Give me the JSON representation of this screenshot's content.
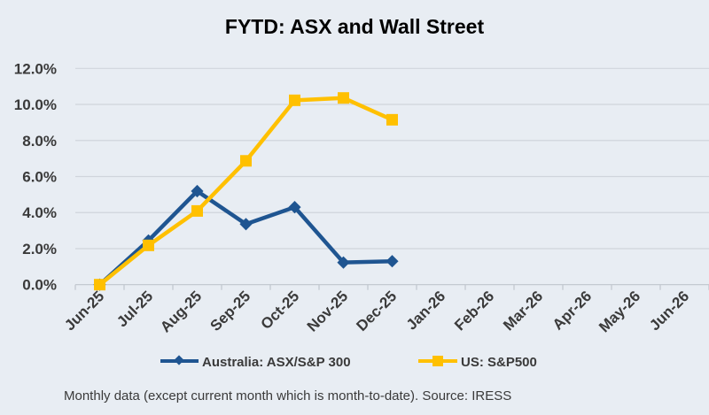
{
  "chart_data": {
    "type": "line",
    "title": "FYTD: ASX and Wall Street",
    "xlabel": "",
    "ylabel": "",
    "categories": [
      "Jun-25",
      "Jul-25",
      "Aug-25",
      "Sep-25",
      "Oct-25",
      "Nov-25",
      "Dec-25",
      "Jan-26",
      "Feb-26",
      "Mar-26",
      "Apr-26",
      "May-26",
      "Jun-26"
    ],
    "ylim": [
      0,
      12
    ],
    "yticks": [
      0,
      2,
      4,
      6,
      8,
      10,
      12
    ],
    "ytick_labels": [
      "0.0%",
      "2.0%",
      "4.0%",
      "6.0%",
      "8.0%",
      "10.0%",
      "12.0%"
    ],
    "grid": true,
    "legend_position": "bottom",
    "series": [
      {
        "name": "Australia: ASX/S&P 300",
        "color": "#1f5591",
        "marker": "diamond",
        "values": [
          0,
          2.45,
          5.19,
          3.36,
          4.3,
          1.23,
          1.3,
          null,
          null,
          null,
          null,
          null,
          null
        ]
      },
      {
        "name": "US: S&P500",
        "color": "#ffc000",
        "marker": "square",
        "values": [
          0,
          2.18,
          4.09,
          6.87,
          10.23,
          10.36,
          9.15,
          null,
          null,
          null,
          null,
          null,
          null
        ]
      }
    ],
    "footnote": "Monthly data (except current month which is month-to-date).  Source: IRESS"
  }
}
